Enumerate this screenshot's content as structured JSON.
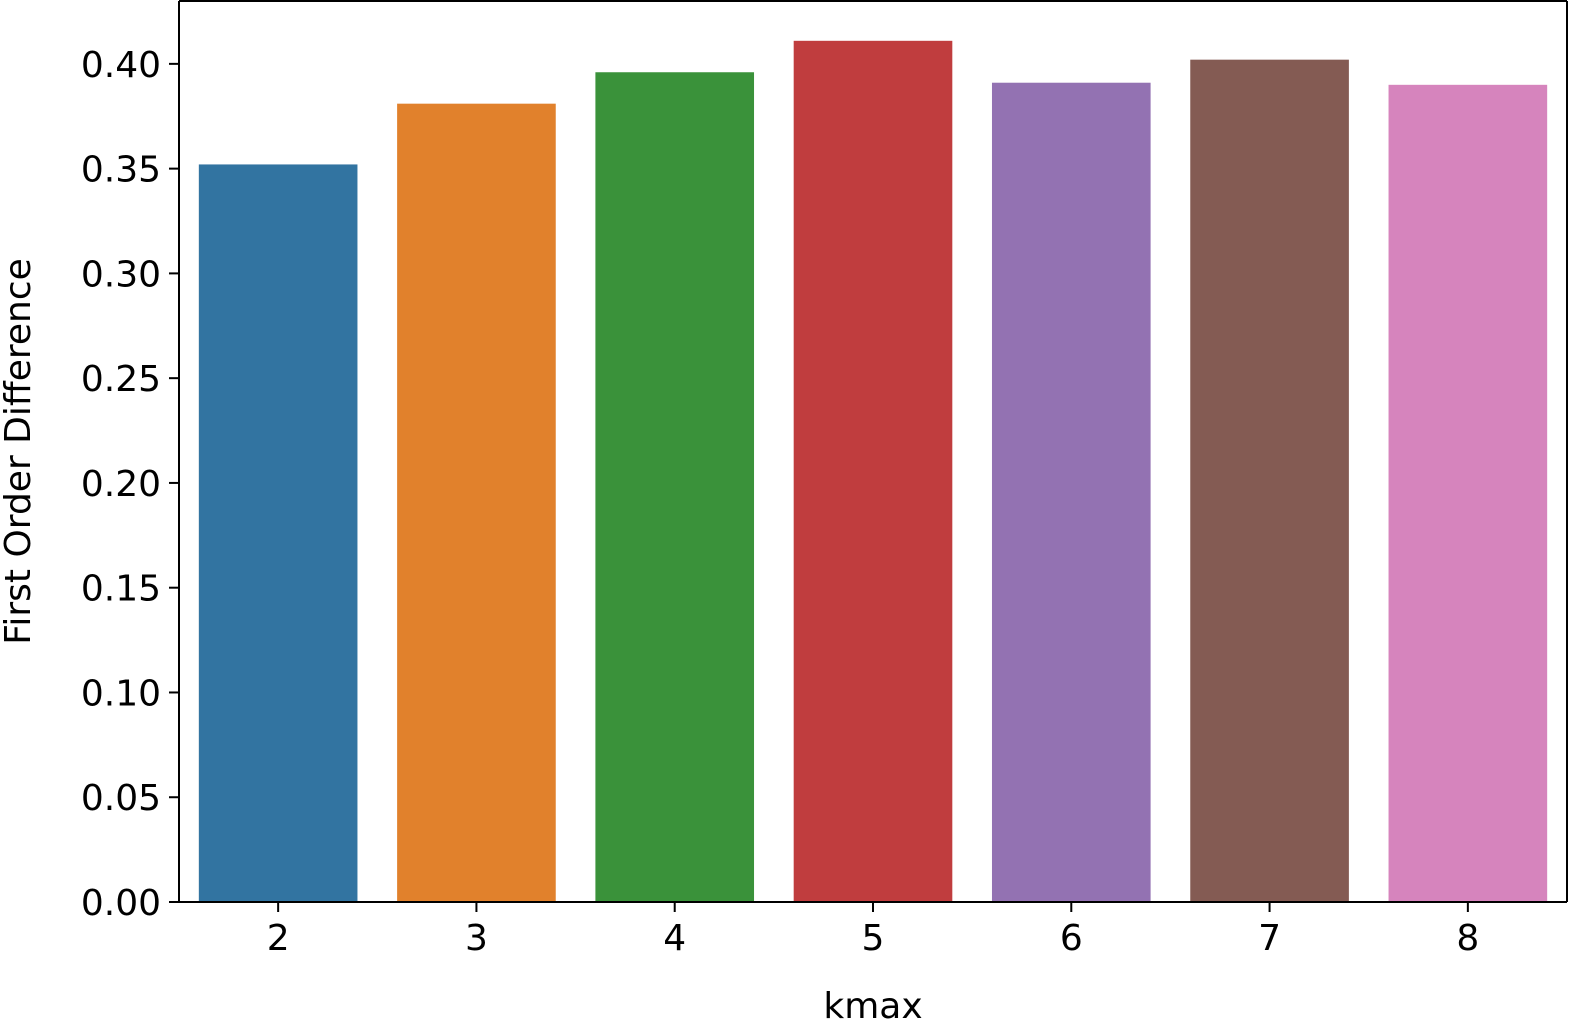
{
  "chart_data": {
    "type": "bar",
    "title": "",
    "xlabel": "kmax",
    "ylabel": "First Order Difference",
    "categories": [
      "2",
      "3",
      "4",
      "5",
      "6",
      "7",
      "8"
    ],
    "values": [
      0.352,
      0.381,
      0.396,
      0.411,
      0.391,
      0.402,
      0.39
    ],
    "colors": [
      "#3274a1",
      "#e1812c",
      "#3a923a",
      "#c03d3e",
      "#9372b2",
      "#845b53",
      "#d684bd"
    ],
    "ylim": [
      0,
      0.43
    ],
    "yticks": [
      0.0,
      0.05,
      0.1,
      0.15,
      0.2,
      0.25,
      0.3,
      0.35,
      0.4
    ],
    "ytick_labels": [
      "0.00",
      "0.05",
      "0.10",
      "0.15",
      "0.20",
      "0.25",
      "0.30",
      "0.35",
      "0.40"
    ],
    "grid": false,
    "legend": "none"
  }
}
